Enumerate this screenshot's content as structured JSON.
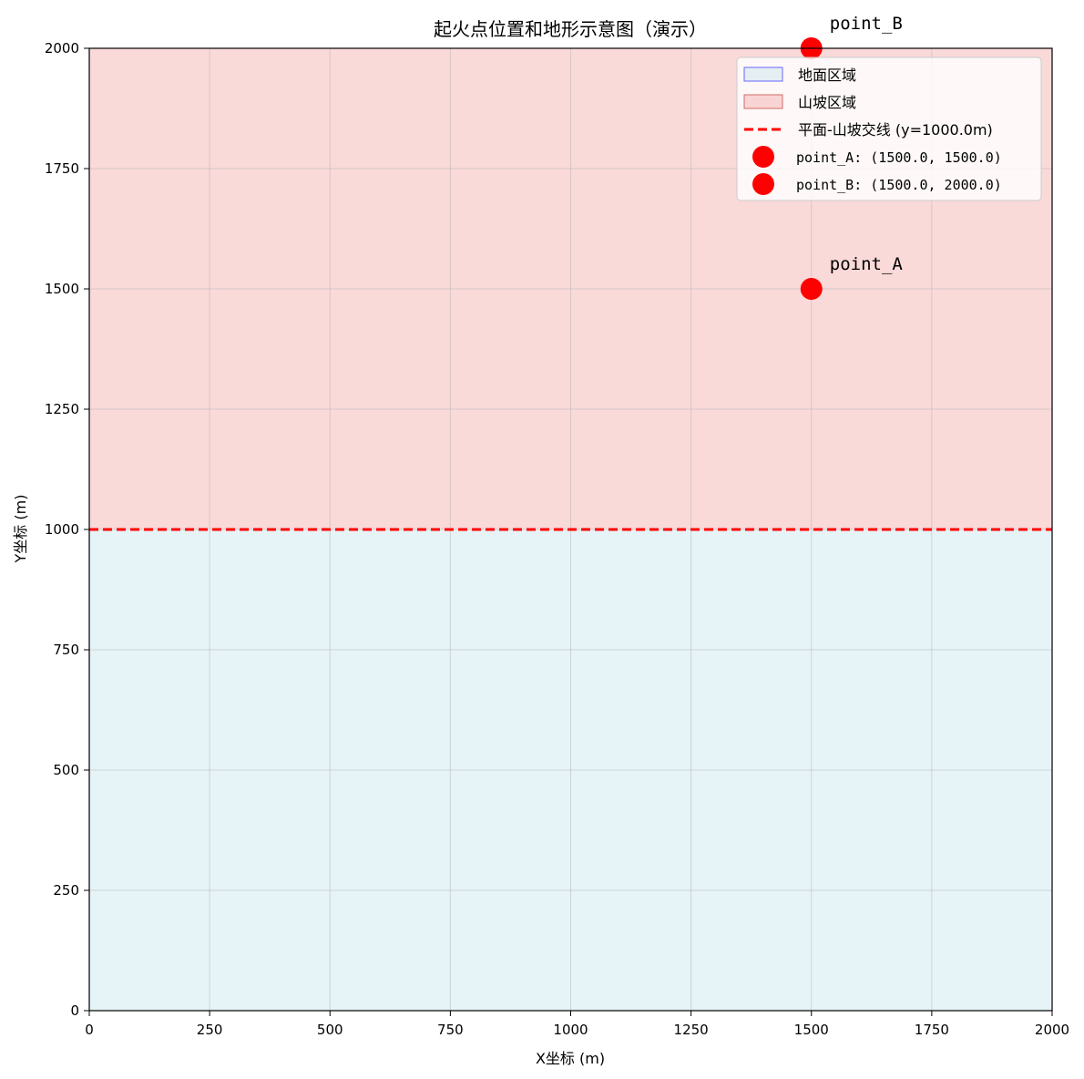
{
  "chart_data": {
    "type": "scatter",
    "title": "起火点位置和地形示意图（演示）",
    "xlabel": "X坐标 (m)",
    "ylabel": "Y坐标 (m)",
    "xlim": [
      0,
      2000
    ],
    "ylim": [
      0,
      2000
    ],
    "x_ticks": [
      0,
      250,
      500,
      750,
      1000,
      1250,
      1500,
      1750,
      2000
    ],
    "y_ticks": [
      0,
      250,
      500,
      750,
      1000,
      1250,
      1500,
      1750,
      2000
    ],
    "grid": true,
    "legend_position": "top-right",
    "regions": [
      {
        "label": "地面区域",
        "y_from": 0,
        "y_to": 1000,
        "fill": "#add8e6",
        "edge": "#6666ff"
      },
      {
        "label": "山坡区域",
        "y_from": 1000,
        "y_to": 2000,
        "fill": "#f08080",
        "edge": "#d46a6a"
      }
    ],
    "boundary": {
      "label": "平面-山坡交线 (y=1000.0m)",
      "y": 1000,
      "color": "#ff0000",
      "style": "dashed"
    },
    "series": [
      {
        "name": "point_A",
        "legend_label": "point_A: (1500.0, 1500.0)",
        "x": 1500,
        "y": 1500,
        "color": "#ff0000"
      },
      {
        "name": "point_B",
        "legend_label": "point_B: (1500.0, 2000.0)",
        "x": 1500,
        "y": 2000,
        "color": "#ff0000"
      }
    ]
  }
}
